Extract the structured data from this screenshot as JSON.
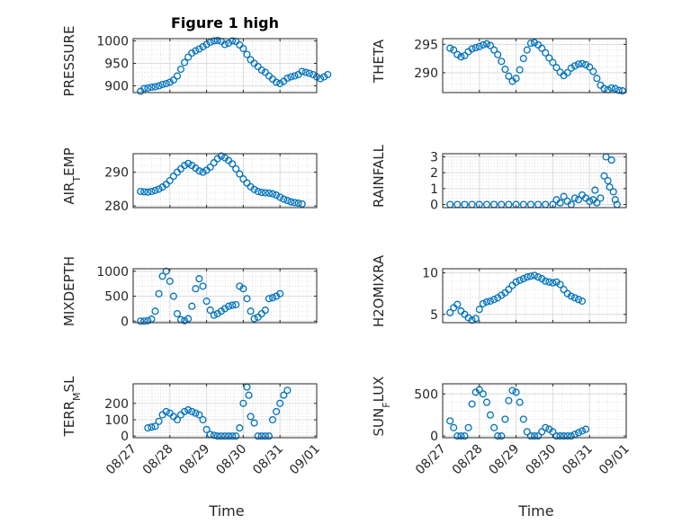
{
  "figure": {
    "xlabel": "Time",
    "date_ticks": [
      "08/27",
      "08/28",
      "08/29",
      "08/30",
      "08/31",
      "09/01"
    ],
    "marker_color": "#0072BD",
    "marker": "open-circle",
    "grid": true,
    "minor_grid": true
  },
  "chart_data": [
    {
      "type": "scatter",
      "title": "Figure 1 high",
      "ylabel": "PRESSURE",
      "xlabel": "",
      "ylim": [
        885,
        1005
      ],
      "yticks": [
        900,
        950,
        1000
      ],
      "x_range": [
        "08/27",
        "09/01"
      ],
      "points": [
        [
          0.2,
          888
        ],
        [
          0.3,
          894
        ],
        [
          0.4,
          895
        ],
        [
          0.5,
          897
        ],
        [
          0.6,
          898
        ],
        [
          0.7,
          900
        ],
        [
          0.8,
          903
        ],
        [
          0.9,
          905
        ],
        [
          1.0,
          908
        ],
        [
          1.1,
          913
        ],
        [
          1.2,
          922
        ],
        [
          1.3,
          937
        ],
        [
          1.4,
          952
        ],
        [
          1.5,
          964
        ],
        [
          1.6,
          973
        ],
        [
          1.7,
          978
        ],
        [
          1.8,
          982
        ],
        [
          1.9,
          987
        ],
        [
          2.0,
          992
        ],
        [
          2.1,
          997
        ],
        [
          2.2,
          1000
        ],
        [
          2.3,
          1001
        ],
        [
          2.4,
          999
        ],
        [
          2.5,
          992
        ],
        [
          2.6,
          995
        ],
        [
          2.7,
          1000
        ],
        [
          2.8,
          999
        ],
        [
          2.9,
          991
        ],
        [
          3.0,
          983
        ],
        [
          3.1,
          970
        ],
        [
          3.2,
          958
        ],
        [
          3.3,
          950
        ],
        [
          3.4,
          943
        ],
        [
          3.5,
          935
        ],
        [
          3.6,
          930
        ],
        [
          3.7,
          922
        ],
        [
          3.8,
          915
        ],
        [
          3.9,
          908
        ],
        [
          4.0,
          905
        ],
        [
          4.1,
          910
        ],
        [
          4.2,
          917
        ],
        [
          4.3,
          920
        ],
        [
          4.4,
          922
        ],
        [
          4.5,
          925
        ],
        [
          4.6,
          932
        ],
        [
          4.7,
          930
        ],
        [
          4.8,
          928
        ],
        [
          4.9,
          925
        ],
        [
          5.0,
          920
        ],
        [
          5.1,
          916
        ],
        [
          5.2,
          920
        ],
        [
          5.3,
          925
        ]
      ]
    },
    {
      "type": "scatter",
      "title": "",
      "ylabel": "THETA",
      "xlabel": "",
      "ylim": [
        286.5,
        296
      ],
      "yticks": [
        290,
        295
      ],
      "x_range": [
        "08/27",
        "09/01"
      ],
      "points": [
        [
          0.2,
          294.3
        ],
        [
          0.3,
          294.0
        ],
        [
          0.4,
          293.2
        ],
        [
          0.5,
          292.8
        ],
        [
          0.6,
          293.0
        ],
        [
          0.7,
          293.7
        ],
        [
          0.8,
          294.2
        ],
        [
          0.9,
          294.4
        ],
        [
          1.0,
          294.6
        ],
        [
          1.1,
          294.9
        ],
        [
          1.2,
          295.1
        ],
        [
          1.3,
          294.8
        ],
        [
          1.4,
          294.0
        ],
        [
          1.5,
          293.2
        ],
        [
          1.6,
          292.0
        ],
        [
          1.7,
          290.6
        ],
        [
          1.8,
          289.4
        ],
        [
          1.9,
          288.5
        ],
        [
          2.0,
          289.0
        ],
        [
          2.1,
          290.5
        ],
        [
          2.2,
          292.5
        ],
        [
          2.3,
          294.0
        ],
        [
          2.4,
          295.2
        ],
        [
          2.5,
          295.3
        ],
        [
          2.6,
          294.9
        ],
        [
          2.7,
          294.3
        ],
        [
          2.8,
          293.5
        ],
        [
          2.9,
          292.6
        ],
        [
          3.0,
          291.8
        ],
        [
          3.1,
          290.9
        ],
        [
          3.2,
          290.1
        ],
        [
          3.3,
          289.5
        ],
        [
          3.4,
          290.0
        ],
        [
          3.5,
          290.8
        ],
        [
          3.6,
          291.2
        ],
        [
          3.7,
          291.5
        ],
        [
          3.8,
          291.6
        ],
        [
          3.9,
          291.4
        ],
        [
          4.0,
          291.0
        ],
        [
          4.1,
          290.2
        ],
        [
          4.2,
          289.0
        ],
        [
          4.3,
          287.8
        ],
        [
          4.4,
          287.2
        ],
        [
          4.5,
          287.0
        ],
        [
          4.6,
          287.3
        ],
        [
          4.7,
          287.2
        ],
        [
          4.8,
          286.9
        ],
        [
          4.9,
          286.8
        ]
      ]
    },
    {
      "type": "scatter",
      "title": "",
      "ylabel": "AIR_TEMP",
      "xlabel": "",
      "ylim": [
        279.5,
        295.5
      ],
      "yticks": [
        280,
        290
      ],
      "x_range": [
        "08/27",
        "09/01"
      ],
      "points": [
        [
          0.2,
          284.3
        ],
        [
          0.3,
          284.2
        ],
        [
          0.4,
          284.1
        ],
        [
          0.5,
          284.3
        ],
        [
          0.6,
          284.6
        ],
        [
          0.7,
          285.0
        ],
        [
          0.8,
          285.6
        ],
        [
          0.9,
          286.4
        ],
        [
          1.0,
          287.5
        ],
        [
          1.1,
          288.8
        ],
        [
          1.2,
          290.0
        ],
        [
          1.3,
          291.0
        ],
        [
          1.4,
          292.0
        ],
        [
          1.5,
          292.6
        ],
        [
          1.6,
          292.0
        ],
        [
          1.7,
          291.2
        ],
        [
          1.8,
          290.4
        ],
        [
          1.9,
          290.0
        ],
        [
          2.0,
          290.6
        ],
        [
          2.1,
          291.5
        ],
        [
          2.2,
          292.8
        ],
        [
          2.3,
          294.0
        ],
        [
          2.4,
          294.8
        ],
        [
          2.5,
          294.3
        ],
        [
          2.6,
          293.5
        ],
        [
          2.7,
          292.5
        ],
        [
          2.8,
          291.0
        ],
        [
          2.9,
          289.5
        ],
        [
          3.0,
          288.0
        ],
        [
          3.1,
          286.8
        ],
        [
          3.2,
          285.7
        ],
        [
          3.3,
          284.9
        ],
        [
          3.4,
          284.3
        ],
        [
          3.5,
          284.0
        ],
        [
          3.6,
          283.9
        ],
        [
          3.7,
          283.8
        ],
        [
          3.8,
          283.6
        ],
        [
          3.9,
          283.2
        ],
        [
          4.0,
          282.6
        ],
        [
          4.1,
          282.0
        ],
        [
          4.2,
          281.6
        ],
        [
          4.3,
          281.2
        ],
        [
          4.4,
          281.0
        ],
        [
          4.5,
          280.8
        ],
        [
          4.6,
          280.6
        ]
      ]
    },
    {
      "type": "scatter",
      "title": "",
      "ylabel": "RAINFALL",
      "xlabel": "",
      "ylim": [
        -0.2,
        3.2
      ],
      "yticks": [
        0,
        1,
        2,
        3
      ],
      "x_range": [
        "08/27",
        "09/01"
      ],
      "points": [
        [
          0.2,
          0
        ],
        [
          0.4,
          0
        ],
        [
          0.6,
          0
        ],
        [
          0.8,
          0
        ],
        [
          1.0,
          0
        ],
        [
          1.2,
          0
        ],
        [
          1.4,
          0
        ],
        [
          1.6,
          0
        ],
        [
          1.8,
          0
        ],
        [
          2.0,
          0
        ],
        [
          2.2,
          0
        ],
        [
          2.4,
          0
        ],
        [
          2.6,
          0
        ],
        [
          2.8,
          0
        ],
        [
          3.0,
          0
        ],
        [
          3.1,
          0.3
        ],
        [
          3.2,
          0.1
        ],
        [
          3.3,
          0.5
        ],
        [
          3.4,
          0.2
        ],
        [
          3.5,
          0
        ],
        [
          3.6,
          0.4
        ],
        [
          3.7,
          0.3
        ],
        [
          3.8,
          0.6
        ],
        [
          3.9,
          0.4
        ],
        [
          4.0,
          0.2
        ],
        [
          4.1,
          0.3
        ],
        [
          4.15,
          0.9
        ],
        [
          4.2,
          0.1
        ],
        [
          4.3,
          0.4
        ],
        [
          4.4,
          1.8
        ],
        [
          4.45,
          3.0
        ],
        [
          4.5,
          1.5
        ],
        [
          4.55,
          1.1
        ],
        [
          4.6,
          2.8
        ],
        [
          4.65,
          0.8
        ],
        [
          4.7,
          0.3
        ],
        [
          4.75,
          0
        ]
      ]
    },
    {
      "type": "scatter",
      "title": "",
      "ylabel": "MIXDEPTH",
      "xlabel": "",
      "ylim": [
        -30,
        1050
      ],
      "yticks": [
        0,
        500,
        1000
      ],
      "x_range": [
        "08/27",
        "09/01"
      ],
      "points": [
        [
          0.2,
          0
        ],
        [
          0.3,
          0
        ],
        [
          0.4,
          10
        ],
        [
          0.5,
          40
        ],
        [
          0.6,
          200
        ],
        [
          0.7,
          550
        ],
        [
          0.8,
          900
        ],
        [
          0.9,
          1000
        ],
        [
          1.0,
          800
        ],
        [
          1.1,
          500
        ],
        [
          1.2,
          150
        ],
        [
          1.3,
          30
        ],
        [
          1.4,
          10
        ],
        [
          1.5,
          50
        ],
        [
          1.6,
          300
        ],
        [
          1.7,
          650
        ],
        [
          1.8,
          850
        ],
        [
          1.9,
          700
        ],
        [
          2.0,
          400
        ],
        [
          2.1,
          220
        ],
        [
          2.2,
          120
        ],
        [
          2.3,
          150
        ],
        [
          2.4,
          200
        ],
        [
          2.5,
          250
        ],
        [
          2.6,
          300
        ],
        [
          2.7,
          320
        ],
        [
          2.8,
          330
        ],
        [
          2.9,
          700
        ],
        [
          3.0,
          650
        ],
        [
          3.1,
          450
        ],
        [
          3.2,
          200
        ],
        [
          3.3,
          50
        ],
        [
          3.4,
          80
        ],
        [
          3.5,
          150
        ],
        [
          3.6,
          220
        ],
        [
          3.7,
          450
        ],
        [
          3.8,
          470
        ],
        [
          3.9,
          500
        ],
        [
          4.0,
          550
        ]
      ]
    },
    {
      "type": "scatter",
      "title": "",
      "ylabel": "H2OMIXRA",
      "xlabel": "",
      "ylim": [
        4,
        10.5
      ],
      "yticks": [
        5,
        10
      ],
      "x_range": [
        "08/27",
        "09/01"
      ],
      "points": [
        [
          0.2,
          5.2
        ],
        [
          0.3,
          5.8
        ],
        [
          0.4,
          6.2
        ],
        [
          0.5,
          5.4
        ],
        [
          0.6,
          5.0
        ],
        [
          0.7,
          4.6
        ],
        [
          0.8,
          4.3
        ],
        [
          0.9,
          4.5
        ],
        [
          1.0,
          5.6
        ],
        [
          1.1,
          6.3
        ],
        [
          1.2,
          6.5
        ],
        [
          1.3,
          6.6
        ],
        [
          1.4,
          6.8
        ],
        [
          1.5,
          7.0
        ],
        [
          1.6,
          7.3
        ],
        [
          1.7,
          7.6
        ],
        [
          1.8,
          8.0
        ],
        [
          1.9,
          8.5
        ],
        [
          2.0,
          8.9
        ],
        [
          2.1,
          9.1
        ],
        [
          2.2,
          9.3
        ],
        [
          2.3,
          9.5
        ],
        [
          2.4,
          9.6
        ],
        [
          2.5,
          9.7
        ],
        [
          2.6,
          9.5
        ],
        [
          2.7,
          9.3
        ],
        [
          2.8,
          9.0
        ],
        [
          2.9,
          8.9
        ],
        [
          3.0,
          8.8
        ],
        [
          3.1,
          8.9
        ],
        [
          3.2,
          8.6
        ],
        [
          3.3,
          8.0
        ],
        [
          3.4,
          7.5
        ],
        [
          3.5,
          7.2
        ],
        [
          3.6,
          7.0
        ],
        [
          3.7,
          6.8
        ],
        [
          3.8,
          6.6
        ]
      ]
    },
    {
      "type": "scatter",
      "title": "",
      "ylabel": "TERR_MSL",
      "xlabel": "",
      "ylim": [
        -10,
        320
      ],
      "yticks": [
        0,
        100,
        200
      ],
      "x_range": [
        "08/27",
        "09/01"
      ],
      "points": [
        [
          0.4,
          50
        ],
        [
          0.5,
          55
        ],
        [
          0.6,
          60
        ],
        [
          0.7,
          90
        ],
        [
          0.8,
          130
        ],
        [
          0.9,
          150
        ],
        [
          1.0,
          140
        ],
        [
          1.1,
          120
        ],
        [
          1.2,
          100
        ],
        [
          1.3,
          130
        ],
        [
          1.4,
          150
        ],
        [
          1.5,
          160
        ],
        [
          1.6,
          150
        ],
        [
          1.7,
          140
        ],
        [
          1.8,
          130
        ],
        [
          1.9,
          100
        ],
        [
          2.0,
          40
        ],
        [
          2.1,
          10
        ],
        [
          2.2,
          5
        ],
        [
          2.3,
          0
        ],
        [
          2.4,
          0
        ],
        [
          2.5,
          0
        ],
        [
          2.6,
          0
        ],
        [
          2.7,
          0
        ],
        [
          2.8,
          0
        ],
        [
          2.9,
          50
        ],
        [
          3.0,
          200
        ],
        [
          3.1,
          300
        ],
        [
          3.15,
          250
        ],
        [
          3.2,
          120
        ],
        [
          3.3,
          80
        ],
        [
          3.4,
          0
        ],
        [
          3.5,
          0
        ],
        [
          3.6,
          0
        ],
        [
          3.7,
          0
        ],
        [
          3.8,
          100
        ],
        [
          3.9,
          150
        ],
        [
          4.0,
          200
        ],
        [
          4.1,
          250
        ],
        [
          4.2,
          280
        ]
      ]
    },
    {
      "type": "scatter",
      "title": "",
      "ylabel": "SUN_FLUX",
      "xlabel": "",
      "ylim": [
        -20,
        620
      ],
      "yticks": [
        0,
        500
      ],
      "x_range": [
        "08/27",
        "09/01"
      ],
      "points": [
        [
          0.2,
          180
        ],
        [
          0.3,
          100
        ],
        [
          0.4,
          0
        ],
        [
          0.5,
          0
        ],
        [
          0.6,
          0
        ],
        [
          0.7,
          100
        ],
        [
          0.8,
          380
        ],
        [
          0.9,
          520
        ],
        [
          1.0,
          550
        ],
        [
          1.1,
          500
        ],
        [
          1.2,
          400
        ],
        [
          1.3,
          250
        ],
        [
          1.4,
          100
        ],
        [
          1.5,
          0
        ],
        [
          1.6,
          0
        ],
        [
          1.7,
          200
        ],
        [
          1.8,
          420
        ],
        [
          1.9,
          540
        ],
        [
          2.0,
          520
        ],
        [
          2.1,
          400
        ],
        [
          2.2,
          200
        ],
        [
          2.3,
          50
        ],
        [
          2.4,
          0
        ],
        [
          2.5,
          0
        ],
        [
          2.6,
          0
        ],
        [
          2.7,
          50
        ],
        [
          2.8,
          100
        ],
        [
          2.9,
          80
        ],
        [
          3.0,
          50
        ],
        [
          3.1,
          0
        ],
        [
          3.2,
          0
        ],
        [
          3.3,
          0
        ],
        [
          3.4,
          0
        ],
        [
          3.5,
          0
        ],
        [
          3.6,
          20
        ],
        [
          3.7,
          40
        ],
        [
          3.8,
          60
        ],
        [
          3.9,
          80
        ]
      ]
    }
  ]
}
